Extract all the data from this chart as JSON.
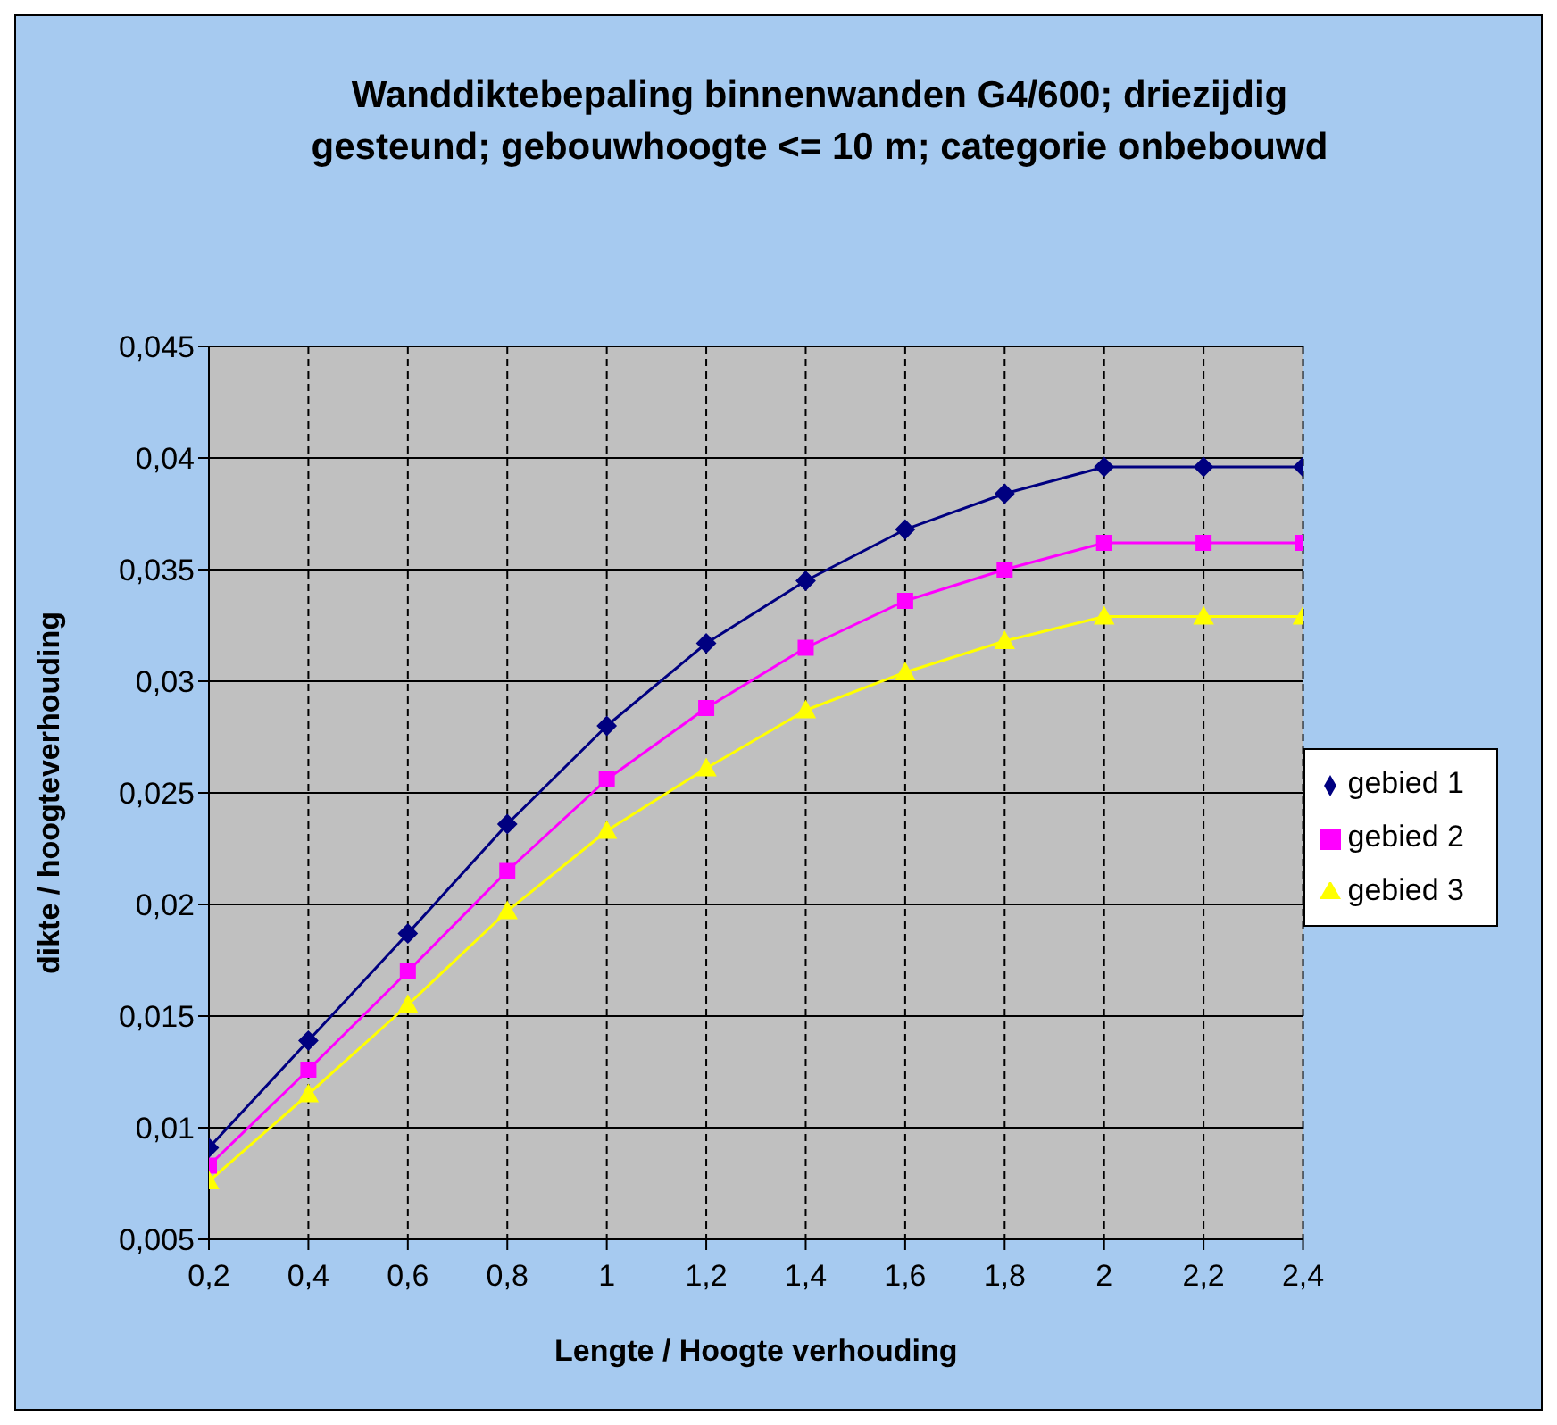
{
  "chart_data": {
    "type": "line",
    "title": "Wanddiktebepaling binnenwanden G4/600; driezijdig gesteund; gebouwhoogte <= 10 m; categorie onbebouwd",
    "xlabel": "Lengte / Hoogte verhouding",
    "ylabel": "dikte / hoogteverhouding",
    "categories": [
      "0,2",
      "0,4",
      "0,6",
      "0,8",
      "1",
      "1,2",
      "1,4",
      "1,6",
      "1,8",
      "2",
      "2,2",
      "2,4"
    ],
    "series": [
      {
        "name": "gebied 1",
        "color": "#000080",
        "marker": "diamond",
        "values": [
          0.0091,
          0.0139,
          0.0187,
          0.0236,
          0.028,
          0.0317,
          0.0345,
          0.0368,
          0.0384,
          0.0396,
          0.0396,
          0.0396
        ]
      },
      {
        "name": "gebied 2",
        "color": "#ff00ff",
        "marker": "square",
        "values": [
          0.0083,
          0.0126,
          0.017,
          0.0215,
          0.0256,
          0.0288,
          0.0315,
          0.0336,
          0.035,
          0.0362,
          0.0362,
          0.0362
        ]
      },
      {
        "name": "gebied 3",
        "color": "#ffff00",
        "marker": "triangle",
        "values": [
          0.0076,
          0.0115,
          0.0155,
          0.0197,
          0.0233,
          0.0261,
          0.0287,
          0.0304,
          0.0318,
          0.0329,
          0.0329,
          0.0329
        ]
      }
    ],
    "ylim": [
      0.005,
      0.045
    ],
    "yticks": [
      {
        "value": 0.005,
        "label": "0,005"
      },
      {
        "value": 0.01,
        "label": "0,01"
      },
      {
        "value": 0.015,
        "label": "0,015"
      },
      {
        "value": 0.02,
        "label": "0,02"
      },
      {
        "value": 0.025,
        "label": "0,025"
      },
      {
        "value": 0.03,
        "label": "0,03"
      },
      {
        "value": 0.035,
        "label": "0,035"
      },
      {
        "value": 0.04,
        "label": "0,04"
      },
      {
        "value": 0.045,
        "label": "0,045"
      }
    ],
    "grid": true,
    "legend": "right",
    "line_style": "solid"
  }
}
